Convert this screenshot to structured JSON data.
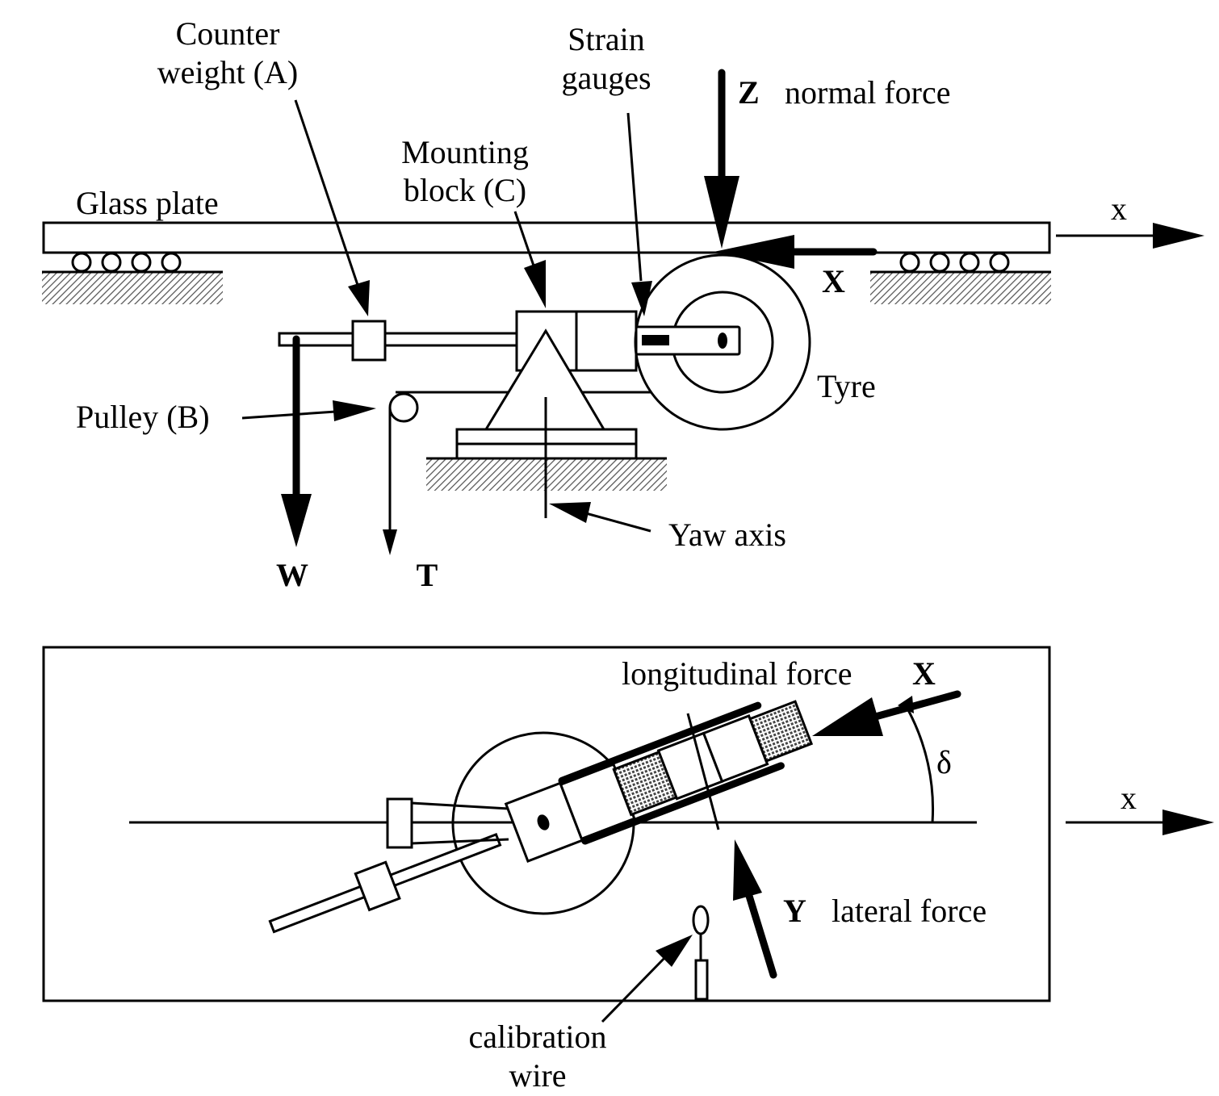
{
  "side_view": {
    "labels": {
      "counter_weight_line1": "Counter",
      "counter_weight_line2": "weight (A)",
      "strain_gauges_line1": "Strain",
      "strain_gauges_line2": "gauges",
      "normal_force_symbol": "Z",
      "normal_force_text": "normal force",
      "mounting_block_line1": "Mounting",
      "mounting_block_line2": "block (C)",
      "glass_plate": "Glass plate",
      "x_axis": "x",
      "longitudinal_force_symbol": "X",
      "tyre": "Tyre",
      "pulley": "Pulley (B)",
      "yaw_axis": "Yaw axis",
      "weight_symbol": "W",
      "tension_symbol": "T"
    }
  },
  "top_view": {
    "labels": {
      "longitudinal_force_text": "longitudinal force",
      "longitudinal_force_symbol": "X",
      "angle_symbol": "δ",
      "x_axis": "x",
      "lateral_force_symbol": "Y",
      "lateral_force_text": "lateral force",
      "calibration_wire_line1": "calibration",
      "calibration_wire_line2": "wire"
    }
  }
}
